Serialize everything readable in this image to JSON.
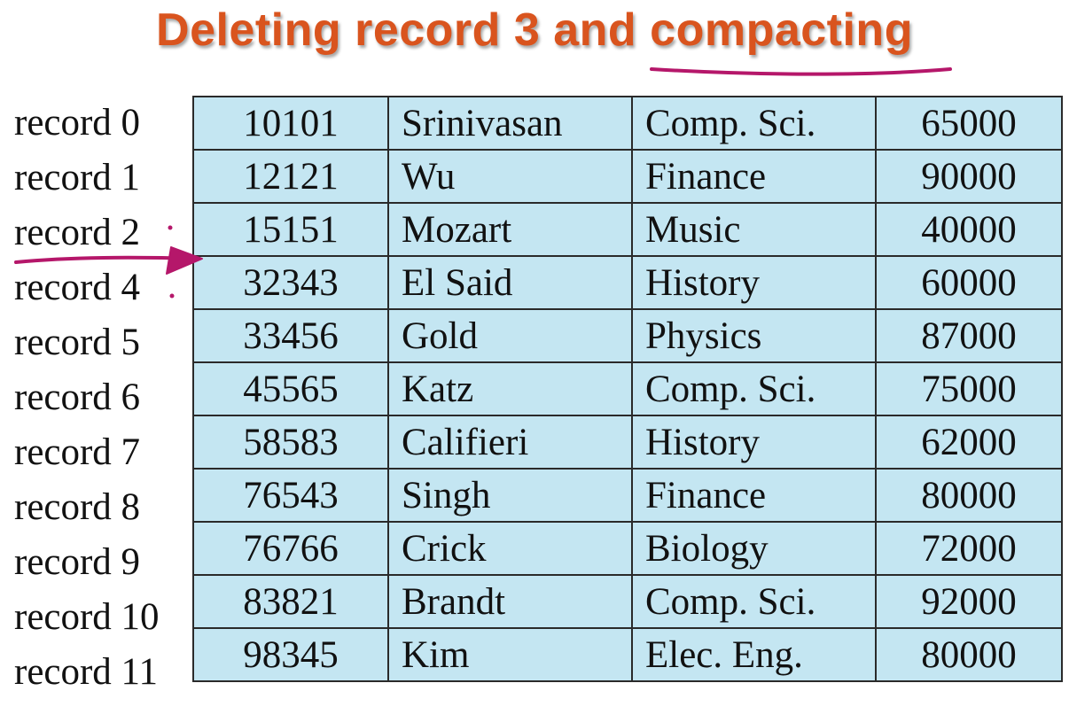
{
  "title": "Deleting record 3 and compacting",
  "ink_color": "#b5176a",
  "title_color": "#d9541e",
  "table_color": "#c4e6f2",
  "records": [
    {
      "label": "record 0",
      "id": "10101",
      "name": "Srinivasan",
      "dept": "Comp. Sci.",
      "salary": "65000"
    },
    {
      "label": "record 1",
      "id": "12121",
      "name": "Wu",
      "dept": "Finance",
      "salary": "90000"
    },
    {
      "label": "record 2",
      "id": "15151",
      "name": "Mozart",
      "dept": "Music",
      "salary": "40000"
    },
    {
      "label": "record 4",
      "id": "32343",
      "name": "El Said",
      "dept": "History",
      "salary": "60000"
    },
    {
      "label": "record 5",
      "id": "33456",
      "name": "Gold",
      "dept": "Physics",
      "salary": "87000"
    },
    {
      "label": "record 6",
      "id": "45565",
      "name": "Katz",
      "dept": "Comp. Sci.",
      "salary": "75000"
    },
    {
      "label": "record 7",
      "id": "58583",
      "name": "Califieri",
      "dept": "History",
      "salary": "62000"
    },
    {
      "label": "record 8",
      "id": "76543",
      "name": "Singh",
      "dept": "Finance",
      "salary": "80000"
    },
    {
      "label": "record 9",
      "id": "76766",
      "name": "Crick",
      "dept": "Biology",
      "salary": "72000"
    },
    {
      "label": "record 10",
      "id": "83821",
      "name": "Brandt",
      "dept": "Comp. Sci.",
      "salary": "92000"
    },
    {
      "label": "record 11",
      "id": "98345",
      "name": "Kim",
      "dept": "Elec. Eng.",
      "salary": "80000"
    }
  ]
}
